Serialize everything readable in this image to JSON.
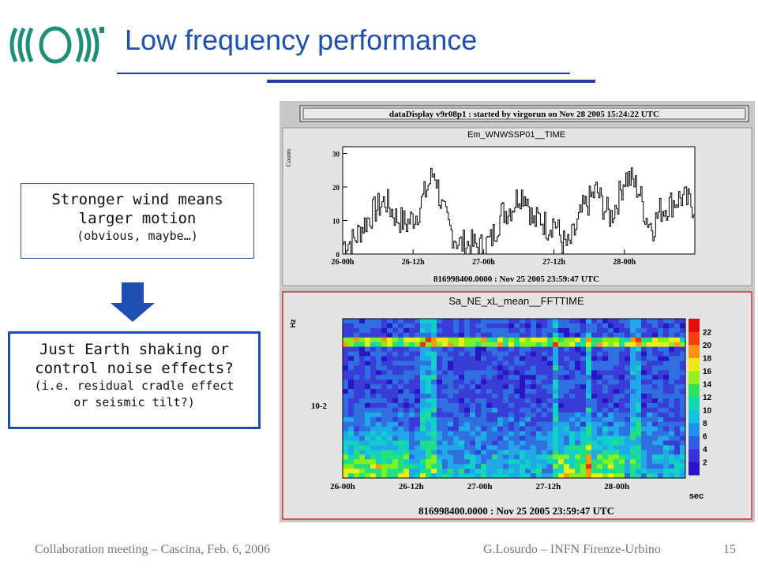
{
  "slide": {
    "title": "Low frequency performance",
    "box1": {
      "line1": "Stronger wind means",
      "line2": "larger motion",
      "line3": "(obvious, maybe…)"
    },
    "box2": {
      "line1": "Just Earth shaking or",
      "line2": "control noise effects?",
      "line3": "(i.e. residual cradle effect",
      "line4": "or seismic tilt?)"
    }
  },
  "footer": {
    "left": "Collaboration meeting – Cascina, Feb. 6, 2006",
    "right": "G.Losurdo – INFN Firenze-Urbino",
    "page": "15"
  },
  "panel": {
    "banner": "dataDisplay v9r08p1 : started by virgorun on Nov 28 2005 15:24:22 UTC"
  },
  "chart_data": [
    {
      "type": "line",
      "title": "Em_WNWSSP01__TIME",
      "ylabel": "Counts",
      "ylim": [
        0,
        32
      ],
      "yticks": [
        "0",
        "10",
        "20",
        "30"
      ],
      "xticks": [
        "26-00h",
        "26-12h",
        "27-00h",
        "27-12h",
        "28-00h"
      ],
      "xlabel": "816998400.0000 : Nov 25 2005 23:59:47 UTC",
      "x": [
        0,
        0.03,
        0.06,
        0.09,
        0.12,
        0.15,
        0.18,
        0.21,
        0.24,
        0.26,
        0.28,
        0.3,
        0.33,
        0.36,
        0.39,
        0.42,
        0.45,
        0.48,
        0.5,
        0.52,
        0.54,
        0.56,
        0.58,
        0.6,
        0.62,
        0.64,
        0.66,
        0.68,
        0.7,
        0.72,
        0.74,
        0.76,
        0.78,
        0.8,
        0.82,
        0.84,
        0.86,
        0.88,
        0.9,
        0.93,
        0.96,
        1.0
      ],
      "y": [
        3,
        4,
        9,
        13,
        16,
        11,
        9,
        12,
        20,
        25,
        14,
        8,
        3,
        3,
        2,
        4,
        12,
        14,
        18,
        18,
        9,
        11,
        8,
        10,
        4,
        2,
        7,
        13,
        16,
        19,
        14,
        11,
        16,
        23,
        22,
        19,
        11,
        8,
        13,
        15,
        17,
        14
      ]
    },
    {
      "type": "heatmap",
      "title": "Sa_NE_xL_mean__FFTTIME",
      "ylabel": "Hz",
      "ytick": "10-2",
      "xticks": [
        "26-00h",
        "26-12h",
        "27-00h",
        "27-12h",
        "28-00h"
      ],
      "xunit": "sec",
      "xlabel": "816998400.0000 : Nov 25 2005 23:59:47 UTC",
      "colorbar": [
        "2",
        "4",
        "6",
        "8",
        "10",
        "12",
        "14",
        "16",
        "18",
        "20",
        "22"
      ]
    }
  ]
}
